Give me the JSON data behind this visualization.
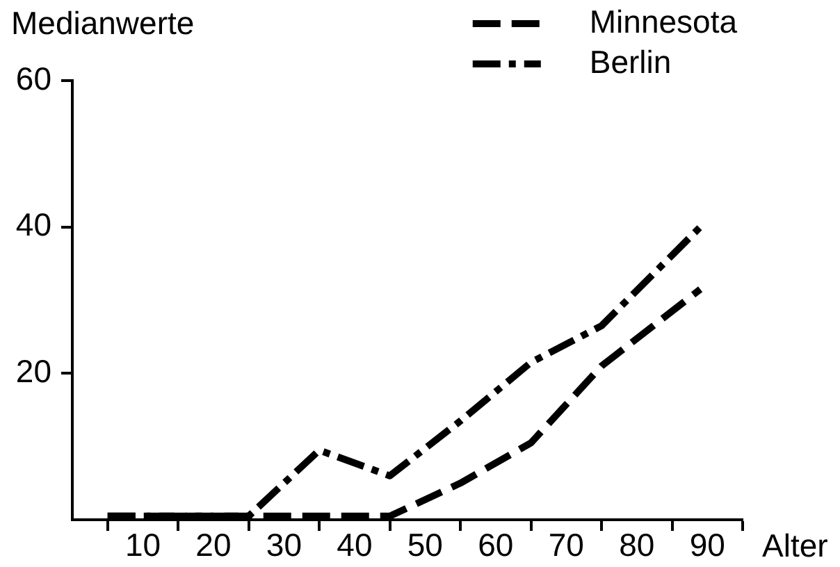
{
  "chart_data": {
    "type": "line",
    "ylabel": "Medianwerte",
    "xlabel": "Alter",
    "x": [
      5,
      15,
      25,
      35,
      45,
      55,
      65,
      75,
      89
    ],
    "series": [
      {
        "name": "Minnesota",
        "color": "#000000",
        "line_style": "dashed",
        "values": [
          0.5,
          0.5,
          0.5,
          0.5,
          0.5,
          5,
          10.5,
          21,
          31.5
        ]
      },
      {
        "name": "Berlin",
        "color": "#000000",
        "line_style": "dashdot",
        "values": [
          0.5,
          0.5,
          0.5,
          9.5,
          6,
          13.5,
          21.5,
          26.5,
          40
        ]
      }
    ],
    "xlim": [
      0,
      95
    ],
    "xticks": [
      {
        "value": 5,
        "label": null
      },
      10,
      {
        "value": 15,
        "label": null
      },
      20,
      {
        "value": 25,
        "label": null
      },
      30,
      {
        "value": 35,
        "label": null
      },
      40,
      {
        "value": 45,
        "label": null
      },
      50,
      {
        "value": 55,
        "label": null
      },
      60,
      {
        "value": 65,
        "label": null
      },
      70,
      {
        "value": 75,
        "label": null
      },
      80,
      {
        "value": 85,
        "label": null
      },
      90,
      {
        "value": 95,
        "label": null
      }
    ],
    "ylim": [
      0,
      60
    ],
    "yticks": [
      20,
      40,
      60
    ],
    "grid": false,
    "legend": "top right",
    "marker": "none"
  }
}
